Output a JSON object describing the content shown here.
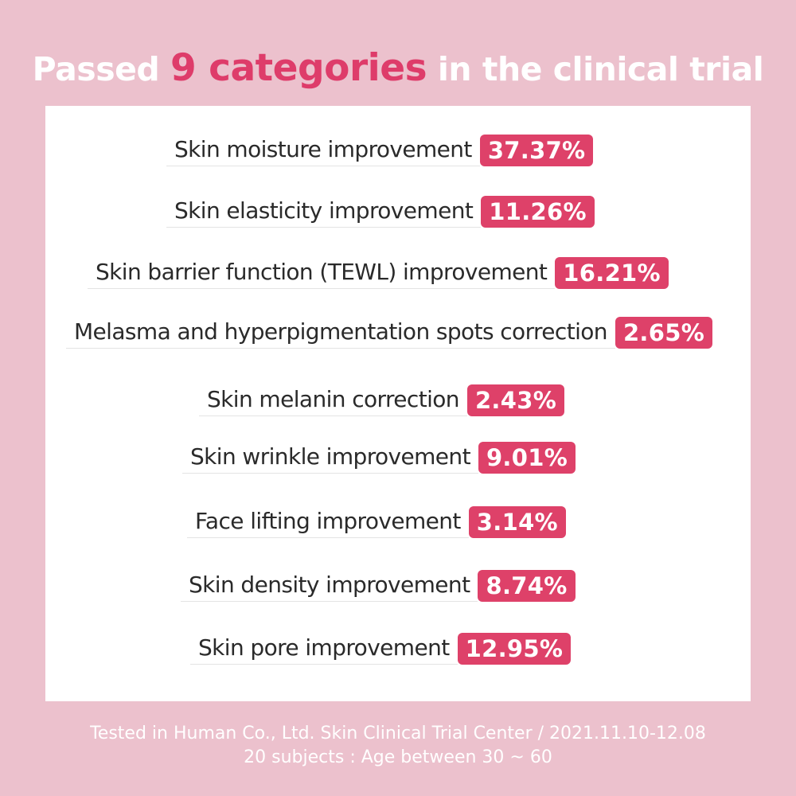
{
  "headline": {
    "prefix": "Passed ",
    "accent": "9 categories",
    "suffix": " in the clinical trial"
  },
  "results": [
    {
      "label": "Skin moisture improvement",
      "value": "37.37%"
    },
    {
      "label": "Skin elasticity improvement",
      "value": "11.26%"
    },
    {
      "label": "Skin barrier function (TEWL) improvement",
      "value": "16.21%"
    },
    {
      "label": "Melasma and hyperpigmentation spots correction",
      "value": "2.65%"
    },
    {
      "label": "Skin melanin correction",
      "value": "2.43%"
    },
    {
      "label": "Skin wrinkle improvement",
      "value": "9.01%"
    },
    {
      "label": "Face lifting improvement",
      "value": "3.14%"
    },
    {
      "label": "Skin density improvement",
      "value": "8.74%"
    },
    {
      "label": "Skin pore improvement",
      "value": "12.95%"
    }
  ],
  "footnote": {
    "line1": "Tested in Human Co., Ltd. Skin Clinical Trial Center / 2021.11.10-12.08",
    "line2": "20 subjects : Age between 30 ~ 60"
  },
  "colors": {
    "background": "#ecc1cd",
    "accent": "#de4169",
    "panel": "#ffffff"
  }
}
